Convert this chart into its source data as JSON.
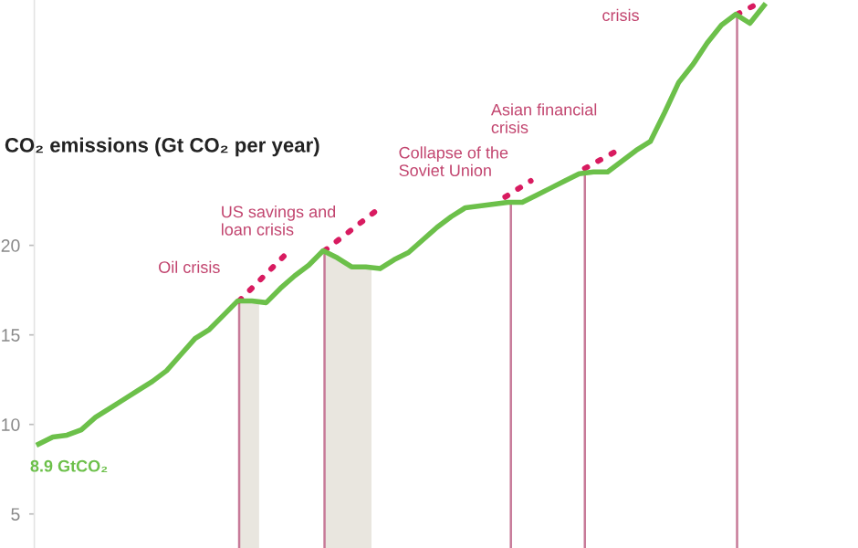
{
  "chart_data": {
    "type": "line",
    "ylabel": "CO₂ emissions (Gt CO₂ per year)",
    "categories": [
      null,
      null,
      null,
      null,
      null,
      null,
      null,
      null,
      null,
      null,
      null,
      null,
      null,
      null,
      null,
      null,
      null,
      null,
      null,
      null,
      null,
      null,
      null,
      null,
      null,
      null,
      null,
      null,
      null,
      null,
      null,
      null,
      null,
      null,
      null,
      null,
      null,
      null,
      null,
      null,
      null,
      null,
      null,
      null,
      null,
      null,
      null,
      null,
      null,
      null,
      null,
      null
    ],
    "ylim": [
      3.1,
      33.7
    ],
    "yticks": [
      5,
      10,
      15,
      20
    ],
    "tick_labels": "y",
    "grid": false,
    "marker": "none",
    "line_style": "solid",
    "series": [
      {
        "color": "#6cc04a",
        "values": [
          8.9,
          9.3,
          9.4,
          9.7,
          10.4,
          10.9,
          11.4,
          11.9,
          12.4,
          13.0,
          13.9,
          14.8,
          15.3,
          16.1,
          16.9,
          16.9,
          16.8,
          17.6,
          18.3,
          18.9,
          19.7,
          19.3,
          18.8,
          18.8,
          18.7,
          19.2,
          19.6,
          20.3,
          21.0,
          21.6,
          22.1,
          22.2,
          22.3,
          22.4,
          22.4,
          22.8,
          23.2,
          23.6,
          24.0,
          24.1,
          24.1,
          24.7,
          25.3,
          25.8,
          27.4,
          29.1,
          30.1,
          31.3,
          32.3,
          32.9,
          32.4,
          33.4
        ]
      }
    ],
    "annotations": [
      "8.9 GtCO₂",
      "Oil crisis",
      "US savings and\nloan crisis",
      "Collapse of the\nSoviet Union",
      "Asian financial\ncrisis",
      "crisis"
    ]
  }
}
